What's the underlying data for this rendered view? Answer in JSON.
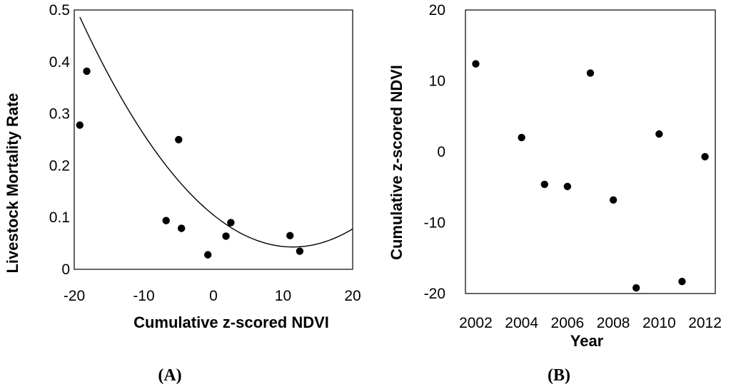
{
  "chart_data": [
    {
      "type": "scatter",
      "panel_label": "(A)",
      "xlabel": "Cumulative z-scored NDVI",
      "ylabel": "Livestock Mortality Rate",
      "xlim": [
        -20,
        20
      ],
      "ylim": [
        0,
        0.5
      ],
      "xticks": [
        "-20",
        "-10",
        "0",
        "10",
        "20"
      ],
      "yticks": [
        "0",
        "0.1",
        "0.2",
        "0.3",
        "0.4",
        "0.5"
      ],
      "grid": false,
      "points": [
        {
          "x": -19.2,
          "y": 0.278
        },
        {
          "x": -18.2,
          "y": 0.382
        },
        {
          "x": -6.8,
          "y": 0.094
        },
        {
          "x": -5.0,
          "y": 0.25
        },
        {
          "x": -4.6,
          "y": 0.079
        },
        {
          "x": -0.8,
          "y": 0.028
        },
        {
          "x": 1.8,
          "y": 0.064
        },
        {
          "x": 2.5,
          "y": 0.09
        },
        {
          "x": 11.0,
          "y": 0.065
        },
        {
          "x": 12.4,
          "y": 0.035
        }
      ],
      "trendline": {
        "type": "quadratic",
        "coefficients": {
          "a": 0.000473,
          "b": -0.0108,
          "c": 0.1047
        },
        "x_range": [
          -19.2,
          20
        ]
      }
    },
    {
      "type": "scatter",
      "panel_label": "(B)",
      "xlabel": "Year",
      "ylabel": "Cumulative z-scored NDVI",
      "xlim": [
        2001.55,
        2012.45
      ],
      "ylim": [
        -20,
        20
      ],
      "xticks": [
        "2002",
        "2004",
        "2006",
        "2008",
        "2010",
        "2012"
      ],
      "yticks": [
        "-20",
        "-10",
        "0",
        "10",
        "20"
      ],
      "grid": false,
      "points": [
        {
          "x": 2002,
          "y": 12.4
        },
        {
          "x": 2004,
          "y": 2.0
        },
        {
          "x": 2005,
          "y": -4.6
        },
        {
          "x": 2006,
          "y": -4.9
        },
        {
          "x": 2007,
          "y": 11.1
        },
        {
          "x": 2008,
          "y": -6.8
        },
        {
          "x": 2009,
          "y": -19.2
        },
        {
          "x": 2010,
          "y": 2.5
        },
        {
          "x": 2011,
          "y": -18.3
        },
        {
          "x": 2012,
          "y": -0.7
        }
      ]
    }
  ]
}
